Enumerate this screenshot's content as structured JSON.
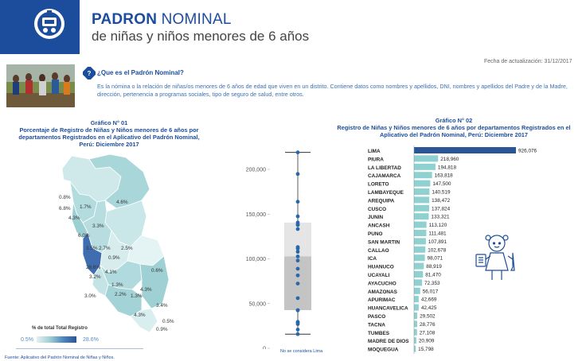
{
  "header": {
    "title_bold": "PADRON",
    "title_rest": " NOMINAL",
    "subtitle": "de niñas y niños menores de 6 años",
    "update_date": "Fecha de actualización: 31/12/2017"
  },
  "intro": {
    "title": "¿Que es el Padrón Nominal?",
    "body": "Es la nómina o la relación de niñas/os menores de 6 años de edad que viven en un distrito. Contiene datos como nombres y apellidos, DNI, nombres y apellidos del Padre y de la Madre, dirección,  pertenencia a programas sociales, tipo de seguro de salud, entre otros."
  },
  "graph1": {
    "title": "Gráfico N° 01\nPorcentaje de Registro de Niñas y Niños menores de 6 años por departamentos Registrados en el Aplicativo del Padrón Nominal, Perú: Diciembre 2017",
    "legend_title": "% de total Total Registro",
    "legend_min": "0.5%",
    "legend_max": "28.6%",
    "colors": {
      "low": "#e2f1f2",
      "mid": "#9fcfd3",
      "high": "#2a5596"
    },
    "regions": [
      {
        "label": "0.8%"
      },
      {
        "label": "6.8%"
      },
      {
        "label": "1.7%"
      },
      {
        "label": "4.3%"
      },
      {
        "label": "4.6%"
      },
      {
        "label": "6.0%"
      },
      {
        "label": "3.3%"
      },
      {
        "label": "3.5%"
      },
      {
        "label": "2.7%"
      },
      {
        "label": "2.5%"
      },
      {
        "label": "0.9%"
      },
      {
        "label": "28.6%"
      },
      {
        "label": "4.1%"
      },
      {
        "label": "0.6%"
      },
      {
        "label": "3.2%"
      },
      {
        "label": "1.3%"
      },
      {
        "label": "4.3%"
      },
      {
        "label": "3.0%"
      },
      {
        "label": "2.2%"
      },
      {
        "label": "1.3%"
      },
      {
        "label": "3.4%"
      },
      {
        "label": "4.3%"
      },
      {
        "label": "0.5%"
      },
      {
        "label": "0.9%"
      }
    ]
  },
  "boxplot": {
    "ticks": [
      "200,000",
      "150,000",
      "100,000",
      "50,000",
      "0"
    ],
    "note": "No se considera Lima",
    "stats": {
      "min": 15798,
      "q1": 42669,
      "median": 102678,
      "q3": 140519,
      "max": 218960
    },
    "colors": {
      "upper_box": "#e5e5e5",
      "lower_box": "#c4c4c4",
      "point": "#2a67a8"
    },
    "points": [
      218960,
      194818,
      163818,
      147500,
      140519,
      138472,
      137824,
      133321,
      113120,
      111481,
      107891,
      102678,
      98071,
      88919,
      81470,
      72353,
      56017,
      42669,
      42425,
      29502,
      28776,
      27108,
      20909,
      15798
    ]
  },
  "graph2": {
    "title": "Gráfico N° 02\nRegistro de Niñas y Niños menores de 6 años por departamentos Registrados en el Aplicativo del Padrón Nominal, Perú: Diciembre 2017"
  },
  "chart_data": {
    "type": "bar",
    "orientation": "horizontal",
    "categories": [
      "LIMA",
      "PIURA",
      "LA LIBERTAD",
      "CAJAMARCA",
      "LORETO",
      "LAMBAYEQUE",
      "AREQUIPA",
      "CUSCO",
      "JUNIN",
      "ANCASH",
      "PUNO",
      "SAN MARTIN",
      "CALLAO",
      "ICA",
      "HUANUCO",
      "UCAYALI",
      "AYACUCHO",
      "AMAZONAS",
      "APURIMAC",
      "HUANCAVELICA",
      "PASCO",
      "TACNA",
      "TUMBES",
      "MADRE DE DIOS",
      "MOQUEGUA"
    ],
    "values": [
      926076,
      218960,
      194818,
      163818,
      147500,
      140519,
      138472,
      137824,
      133321,
      113120,
      111481,
      107891,
      102678,
      98071,
      88919,
      81470,
      72353,
      56017,
      42669,
      42425,
      29502,
      28776,
      27108,
      20909,
      15798
    ],
    "value_labels": [
      "926,076",
      "218,960",
      "194,818",
      "163,818",
      "147,500",
      "140,519",
      "138,472",
      "137,824",
      "133,321",
      "113,120",
      "111,481",
      "107,891",
      "102,678",
      "98,071",
      "88,919",
      "81,470",
      "72,353",
      "56,017",
      "42,669",
      "42,425",
      "29,502",
      "28,776",
      "27,108",
      "20,909",
      "15,798"
    ],
    "colors": {
      "highlight": "#2a5596",
      "default": "#8fd1d1"
    }
  }
}
